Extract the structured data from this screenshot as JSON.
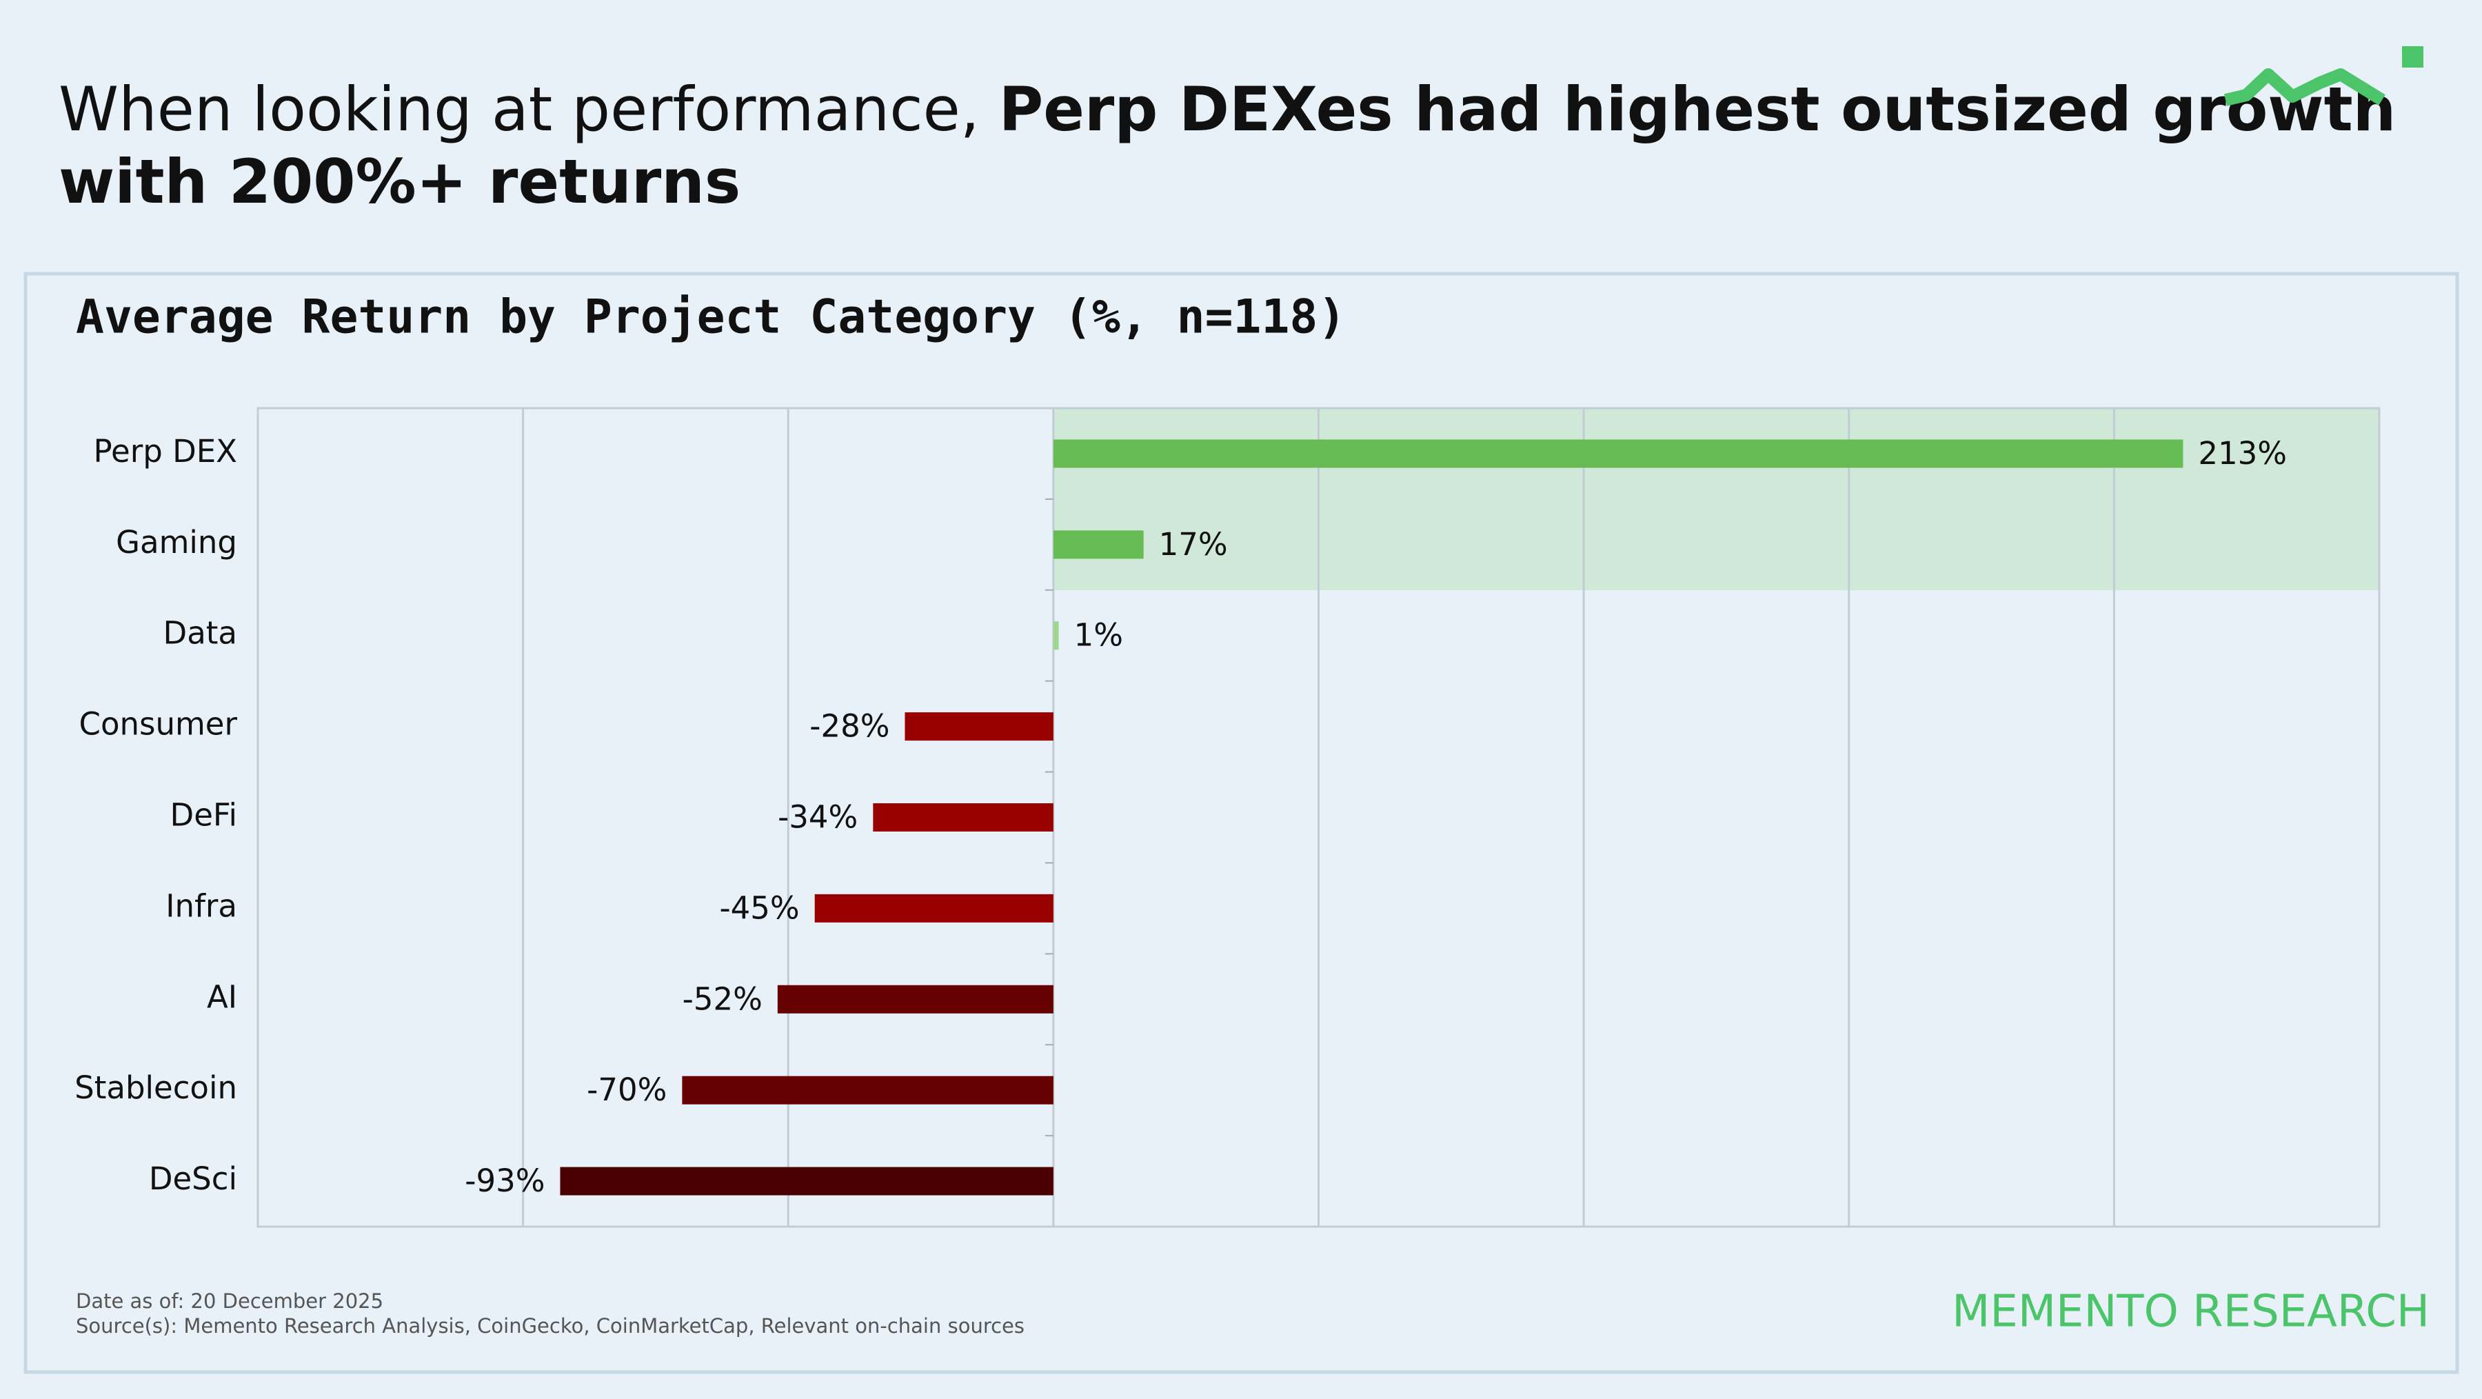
{
  "header": {
    "title_normal": "When looking at performance, ",
    "title_bold_1": "Perp DEXes had highest outsized growth",
    "title_bold_2": "with 200%+ returns"
  },
  "chart_data": {
    "type": "bar",
    "orientation": "horizontal",
    "title": "Average Return by Project Category (%, n=118)",
    "categories": [
      "Perp DEX",
      "Gaming",
      "Data",
      "Consumer",
      "DeFi",
      "Infra",
      "AI",
      "Stablecoin",
      "DeSci"
    ],
    "values": [
      213,
      17,
      1,
      -28,
      -34,
      -45,
      -52,
      -70,
      -93
    ],
    "value_labels": [
      "213%",
      "17%",
      "1%",
      "-28%",
      "-34%",
      "-45%",
      "-52%",
      "-70%",
      "-93%"
    ],
    "colors": [
      "#66bb55",
      "#66bb55",
      "#9fd68f",
      "#990000",
      "#990000",
      "#990000",
      "#660000",
      "#660000",
      "#4a0000"
    ],
    "xlim": [
      -150,
      250
    ],
    "xticks": [
      -150,
      -100,
      -50,
      0,
      50,
      100,
      150,
      200,
      250
    ],
    "grid": true
  },
  "footer": {
    "date": "Date as of: 20 December 2025",
    "source": "Source(s): Memento Research Analysis, CoinGecko, CoinMarketCap, Relevant on-chain sources",
    "brand": "MEMENTO RESEARCH"
  }
}
